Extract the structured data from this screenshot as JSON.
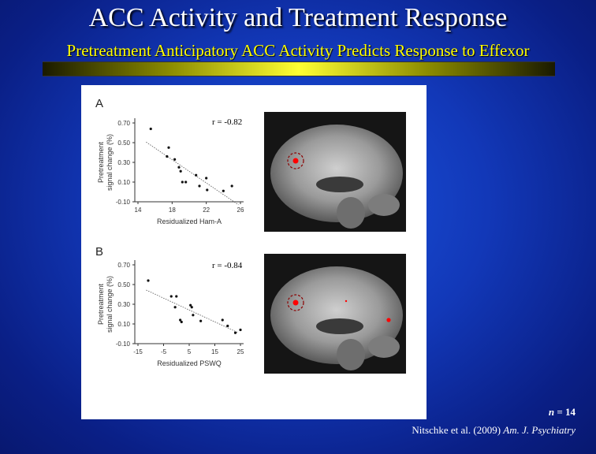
{
  "header": {
    "title": "ACC Activity and Treatment Response",
    "subtitle": "Pretreatment Anticipatory ACC Activity Predicts Response to Effexor"
  },
  "footer": {
    "n_prefix": "n",
    "n_value": "= 14",
    "citation_authors": "Nitschke et al. (2009)",
    "citation_journal": "Am. J. Psychiatry"
  },
  "colors": {
    "background": "#1238b8",
    "title": "#ffffff",
    "subtitle": "#ffff00",
    "highlight": "#ff0000"
  },
  "chart_data": [
    {
      "type": "scatter",
      "panel_label": "A",
      "title": "",
      "r_label": "r = -0.82",
      "xlabel": "Residualized Ham-A",
      "ylabel_lines": [
        "Pretreatment",
        "signal change (%)"
      ],
      "xlim": [
        14,
        26
      ],
      "ylim": [
        -0.1,
        0.7
      ],
      "x_ticks": [
        "14",
        "18",
        "22",
        "26"
      ],
      "y_ticks": [
        "0.70",
        "0.50",
        "0.30",
        "0.10",
        "-0.10"
      ],
      "trendline": true,
      "points": [
        {
          "x": 15.5,
          "y": 0.64
        },
        {
          "x": 17.6,
          "y": 0.45
        },
        {
          "x": 17.4,
          "y": 0.36
        },
        {
          "x": 18.3,
          "y": 0.33
        },
        {
          "x": 18.8,
          "y": 0.25
        },
        {
          "x": 19.0,
          "y": 0.21
        },
        {
          "x": 19.2,
          "y": 0.1
        },
        {
          "x": 19.6,
          "y": 0.1
        },
        {
          "x": 20.8,
          "y": 0.17
        },
        {
          "x": 21.2,
          "y": 0.06
        },
        {
          "x": 22.0,
          "y": 0.14
        },
        {
          "x": 22.1,
          "y": 0.02
        },
        {
          "x": 24.0,
          "y": 0.01
        },
        {
          "x": 25.0,
          "y": 0.06
        }
      ]
    },
    {
      "type": "scatter",
      "panel_label": "B",
      "title": "",
      "r_label": "r = -0.84",
      "xlabel": "Residualized PSWQ",
      "ylabel_lines": [
        "Pretreatment",
        "signal change (%)"
      ],
      "xlim": [
        -15,
        25
      ],
      "ylim": [
        -0.1,
        0.7
      ],
      "x_ticks": [
        "-15",
        "-5",
        "5",
        "15",
        "25"
      ],
      "y_ticks": [
        "0.70",
        "0.50",
        "0.30",
        "0.10",
        "-0.10"
      ],
      "trendline": true,
      "points": [
        {
          "x": -11.0,
          "y": 0.54
        },
        {
          "x": -2.0,
          "y": 0.38
        },
        {
          "x": 0.0,
          "y": 0.38
        },
        {
          "x": -0.5,
          "y": 0.27
        },
        {
          "x": 1.5,
          "y": 0.14
        },
        {
          "x": 2.0,
          "y": 0.12
        },
        {
          "x": 5.5,
          "y": 0.29
        },
        {
          "x": 6.0,
          "y": 0.27
        },
        {
          "x": 6.5,
          "y": 0.19
        },
        {
          "x": 9.5,
          "y": 0.13
        },
        {
          "x": 18.0,
          "y": 0.14
        },
        {
          "x": 20.0,
          "y": 0.08
        },
        {
          "x": 23.0,
          "y": 0.01
        },
        {
          "x": 25.0,
          "y": 0.04
        }
      ]
    }
  ],
  "brain_panels": [
    {
      "activation_circled": true,
      "extra_spots": 0
    },
    {
      "activation_circled": true,
      "extra_spots": 2
    }
  ]
}
